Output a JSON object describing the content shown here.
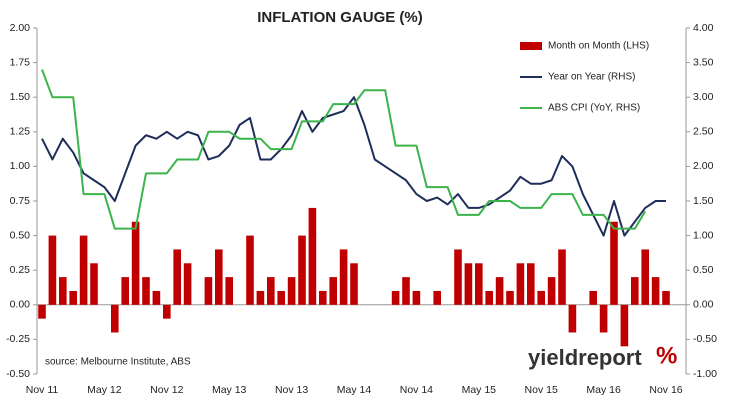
{
  "chart_data": {
    "type": "bar-line",
    "title": "INFLATION GAUGE (%)",
    "source": "source: Melbourne Institute, ABS",
    "logo": {
      "text": "yieldreport",
      "symbol": "%"
    },
    "categories": [
      "Nov 11",
      null,
      null,
      null,
      null,
      null,
      "May 12",
      null,
      null,
      null,
      null,
      null,
      "Nov 12",
      null,
      null,
      null,
      null,
      null,
      "May 13",
      null,
      null,
      null,
      null,
      null,
      "Nov 13",
      null,
      null,
      null,
      null,
      null,
      "May 14",
      null,
      null,
      null,
      null,
      null,
      "Nov 14",
      null,
      null,
      null,
      null,
      null,
      "May 15",
      null,
      null,
      null,
      null,
      null,
      "Nov 15",
      null,
      null,
      null,
      null,
      null,
      "May 16",
      null,
      null,
      null,
      null,
      null,
      "Nov 16"
    ],
    "series": [
      {
        "name": "Month on Month (LHS)",
        "kind": "bar",
        "color": "#c00000",
        "values": [
          -0.1,
          0.5,
          0.2,
          0.1,
          0.5,
          0.3,
          0,
          -0.2,
          0.2,
          0.6,
          0.2,
          0.1,
          -0.1,
          0.4,
          0.3,
          0,
          0.2,
          0.4,
          0.2,
          0,
          0.5,
          0.1,
          0.2,
          0.1,
          0.2,
          0.5,
          0.7,
          0.1,
          0.2,
          0.4,
          0.3,
          0,
          0,
          0,
          0.1,
          0.2,
          0.1,
          0,
          0.1,
          0,
          0.4,
          0.3,
          0.3,
          0.1,
          0.2,
          0.1,
          0.3,
          0.3,
          0.1,
          0.2,
          0.4,
          -0.2,
          0,
          0.1,
          -0.2,
          0.6,
          -0.3,
          0.2,
          0.4,
          0.2,
          0.1
        ]
      },
      {
        "name": "Year on Year (RHS)",
        "kind": "line",
        "axis": "y2",
        "color": "#1f2d5a",
        "values": [
          2.4,
          2.1,
          2.4,
          2.2,
          1.9,
          1.8,
          1.7,
          1.5,
          1.9,
          2.3,
          2.45,
          2.4,
          2.5,
          2.4,
          2.5,
          2.45,
          2.1,
          2.15,
          2.3,
          2.6,
          2.7,
          2.1,
          2.1,
          2.25,
          2.45,
          2.8,
          2.5,
          2.7,
          2.75,
          2.8,
          3.0,
          2.6,
          2.1,
          2.0,
          1.9,
          1.8,
          1.6,
          1.5,
          1.55,
          1.45,
          1.6,
          1.4,
          1.4,
          1.45,
          1.55,
          1.65,
          1.85,
          1.75,
          1.75,
          1.8,
          2.15,
          2.0,
          1.6,
          1.3,
          1.0,
          1.5,
          1.0,
          1.2,
          1.4,
          1.5,
          1.5
        ]
      },
      {
        "name": "ABS CPI (YoY, RHS)",
        "kind": "line",
        "axis": "y2",
        "color": "#3cb44b",
        "values": [
          3.4,
          3.0,
          3.0,
          3.0,
          1.6,
          1.6,
          1.6,
          1.1,
          1.1,
          1.1,
          1.9,
          1.9,
          1.9,
          2.1,
          2.1,
          2.1,
          2.5,
          2.5,
          2.5,
          2.4,
          2.4,
          2.4,
          2.25,
          2.25,
          2.25,
          2.65,
          2.65,
          2.65,
          2.9,
          2.9,
          2.9,
          3.1,
          3.1,
          3.1,
          2.3,
          2.3,
          2.3,
          1.7,
          1.7,
          1.7,
          1.3,
          1.3,
          1.3,
          1.5,
          1.5,
          1.5,
          1.4,
          1.4,
          1.4,
          1.6,
          1.6,
          1.6,
          1.3,
          1.3,
          1.3,
          1.1,
          1.1,
          1.1,
          1.35,
          null,
          null
        ]
      }
    ],
    "ylim": [
      -0.5,
      2.0
    ],
    "yticks": [
      {
        "value": -0.5,
        "label": "-0.50"
      },
      {
        "value": -0.25,
        "label": "-0.25"
      },
      {
        "value": 0,
        "label": "0.00"
      },
      {
        "value": 0.25,
        "label": "0.25"
      },
      {
        "value": 0.5,
        "label": "0.50"
      },
      {
        "value": 0.75,
        "label": "0.75"
      },
      {
        "value": 1.0,
        "label": "1.00"
      },
      {
        "value": 1.25,
        "label": "1.25"
      },
      {
        "value": 1.5,
        "label": "1.50"
      },
      {
        "value": 1.75,
        "label": "1.75"
      },
      {
        "value": 2.0,
        "label": "2.00"
      }
    ],
    "y2lim": [
      -1.0,
      4.0
    ],
    "y2ticks": [
      {
        "value": -1.0,
        "label": "-1.00"
      },
      {
        "value": -0.5,
        "label": "-0.50"
      },
      {
        "value": 0,
        "label": "0.00"
      },
      {
        "value": 0.5,
        "label": "0.50"
      },
      {
        "value": 1.0,
        "label": "1.00"
      },
      {
        "value": 1.5,
        "label": "1.50"
      },
      {
        "value": 2.0,
        "label": "2.00"
      },
      {
        "value": 2.5,
        "label": "2.50"
      },
      {
        "value": 3.0,
        "label": "3.00"
      },
      {
        "value": 3.5,
        "label": "3.50"
      },
      {
        "value": 4.0,
        "label": "4.00"
      }
    ],
    "legend": "top-right"
  }
}
